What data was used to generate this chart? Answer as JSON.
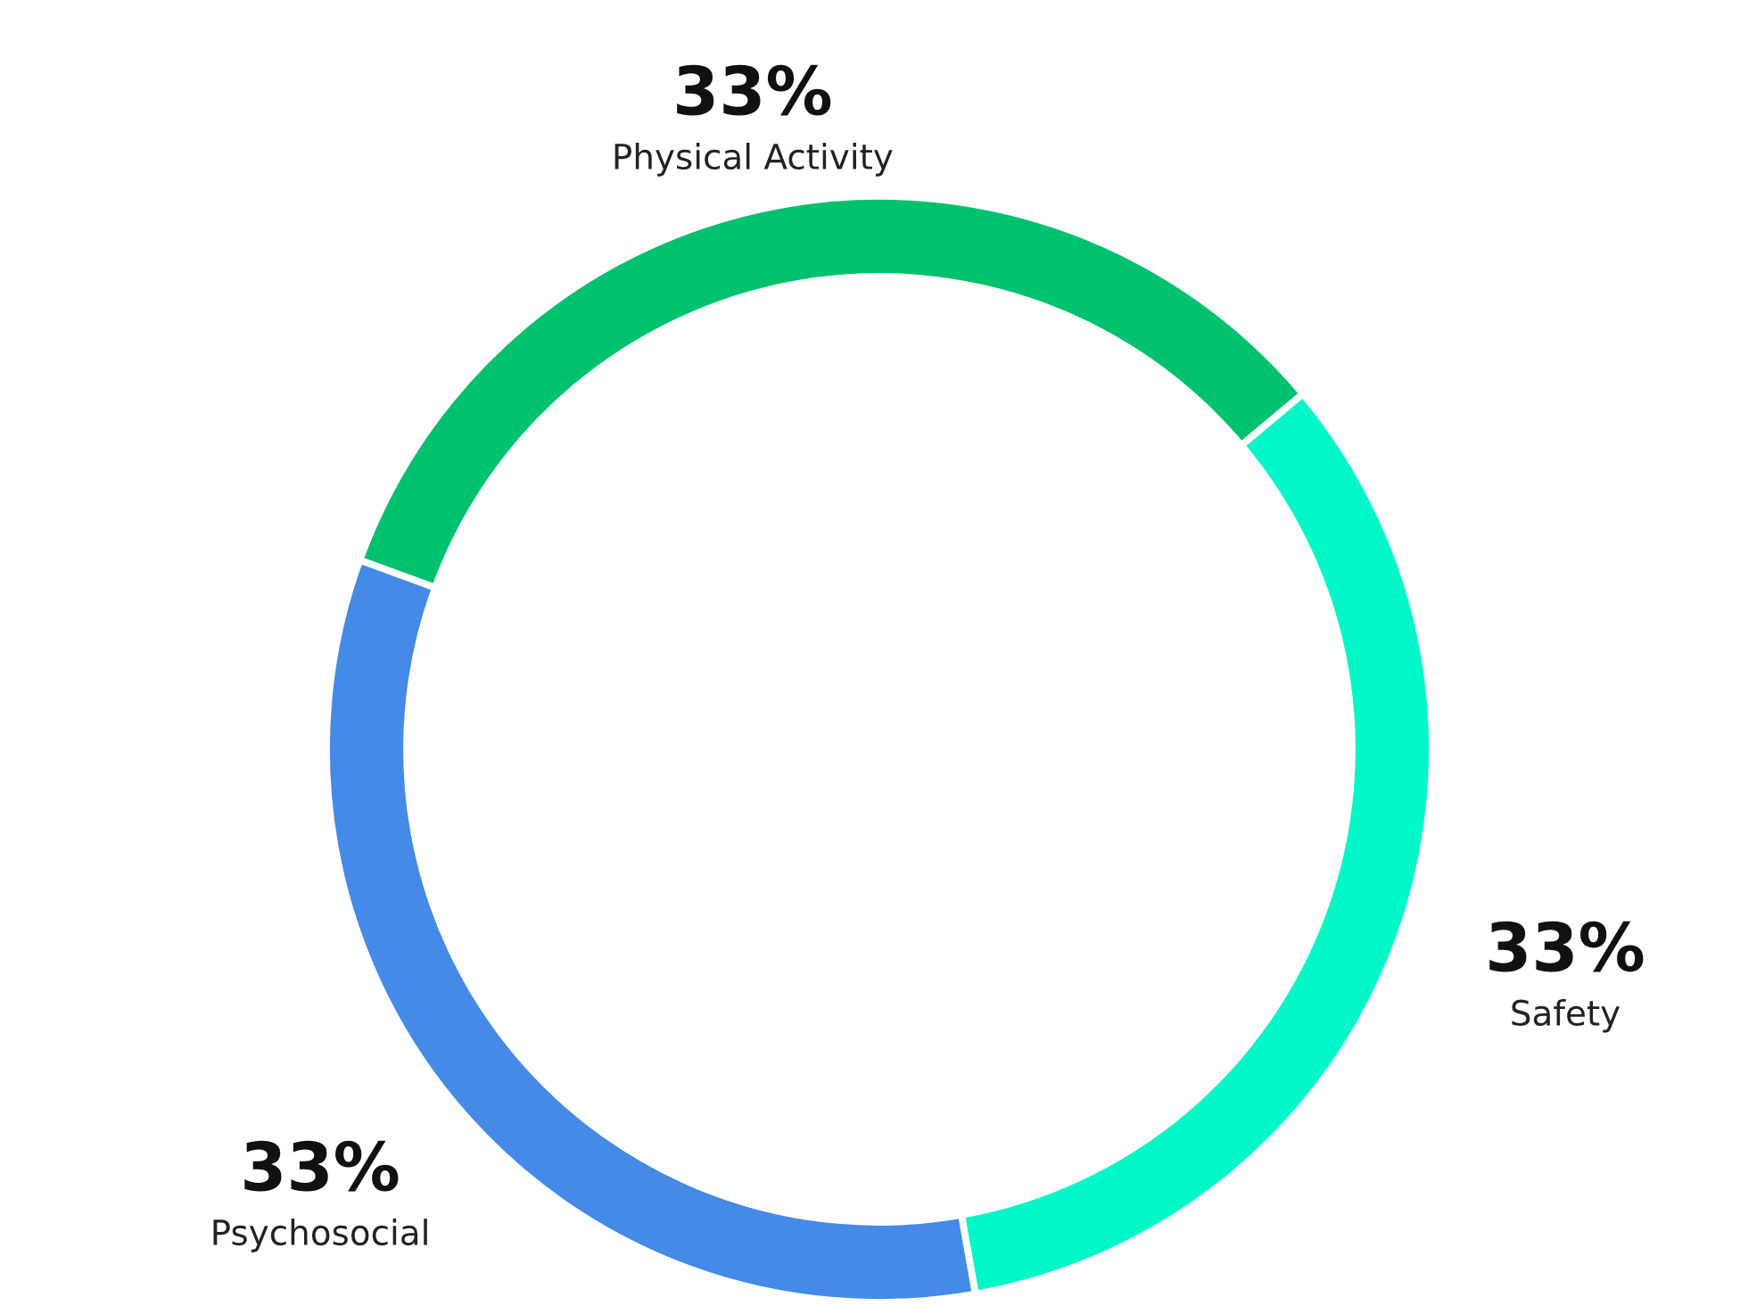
{
  "chart_data": {
    "type": "donut",
    "categories": [
      "Physical Activity",
      "Safety",
      "Psychosocial"
    ],
    "values": [
      33,
      33,
      33
    ],
    "value_labels": [
      "33%",
      "33%",
      "33%"
    ],
    "colors": [
      "#00c16e",
      "#00f8c8",
      "#448ae6"
    ]
  }
}
